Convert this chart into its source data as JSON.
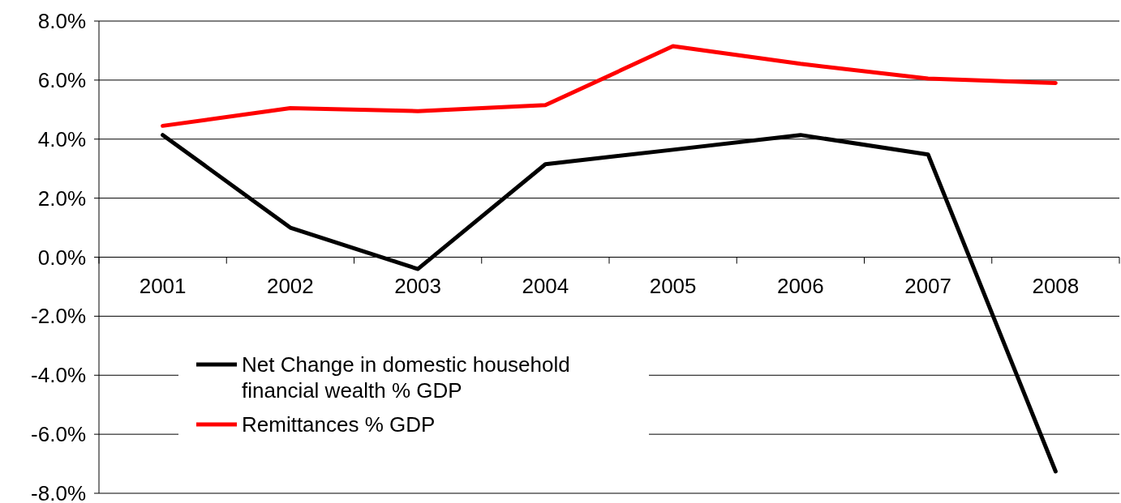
{
  "chart_data": {
    "type": "line",
    "categories": [
      "2001",
      "2002",
      "2003",
      "2004",
      "2005",
      "2006",
      "2007",
      "2008"
    ],
    "series": [
      {
        "name": "Net Change in domestic household financial wealth % GDP",
        "color": "#000000",
        "values": [
          4.14,
          1.0,
          -0.4,
          3.15,
          3.64,
          4.14,
          3.48,
          -7.26
        ]
      },
      {
        "name": "Remittances % GDP",
        "color": "#ff0000",
        "values": [
          4.45,
          5.05,
          4.95,
          5.15,
          7.15,
          6.55,
          6.05,
          5.9
        ]
      }
    ],
    "ylim": [
      -8,
      8
    ],
    "yticks": [
      {
        "value": -8,
        "label": "-8.0%"
      },
      {
        "value": -6,
        "label": "-6.0%"
      },
      {
        "value": -4,
        "label": "-4.0%"
      },
      {
        "value": -2,
        "label": "-2.0%"
      },
      {
        "value": 0,
        "label": "0.0%"
      },
      {
        "value": 2,
        "label": "2.0%"
      },
      {
        "value": 4,
        "label": "4.0%"
      },
      {
        "value": 6,
        "label": "6.0%"
      },
      {
        "value": 8,
        "label": "8.0%"
      }
    ],
    "grid": "y",
    "legend": "bottom left",
    "marker": "none",
    "line_style": "solid"
  }
}
